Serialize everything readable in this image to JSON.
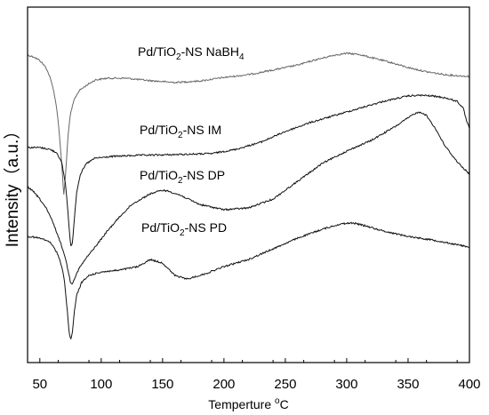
{
  "chart_data": {
    "type": "line",
    "xlabel_main": "Temperture ",
    "xlabel_sup": "o",
    "xlabel_unit": "C",
    "ylabel": "Intensity（a.u.）",
    "xlim": [
      40,
      400
    ],
    "xticks": [
      50,
      100,
      150,
      200,
      250,
      300,
      350,
      400
    ],
    "ylim": [
      0,
      100
    ],
    "grid": false,
    "series": [
      {
        "label_parts": [
          "Pd/TiO",
          "2",
          "-NS NaBH",
          "4"
        ],
        "color": "#666666",
        "x": [
          40,
          45,
          50,
          55,
          58,
          61,
          64,
          66,
          68,
          69.5,
          71,
          73,
          75,
          78,
          82,
          88,
          95,
          105,
          120,
          140,
          160,
          180,
          200,
          220,
          240,
          260,
          275,
          290,
          300,
          310,
          320,
          335,
          350,
          365,
          380,
          390,
          400
        ],
        "y": [
          86.5,
          86.0,
          85.0,
          83.0,
          80.5,
          77.0,
          71.0,
          64.0,
          55.0,
          47.0,
          53.0,
          64.0,
          70.0,
          74.0,
          76.5,
          78.0,
          79.5,
          80.0,
          80.0,
          79.3,
          78.8,
          79.2,
          80.2,
          81.0,
          82.3,
          83.7,
          85.2,
          86.5,
          87.0,
          86.7,
          85.8,
          84.5,
          83.0,
          81.8,
          81.0,
          80.7,
          80.5
        ]
      },
      {
        "label_parts": [
          "Pd/TiO",
          "2",
          "-NS IM"
        ],
        "color": "#111111",
        "x": [
          40,
          50,
          58,
          64,
          68,
          71,
          73,
          74.5,
          75.5,
          76.5,
          78,
          80,
          83,
          88,
          95,
          110,
          130,
          160,
          190,
          210,
          230,
          250,
          270,
          290,
          300,
          310,
          330,
          350,
          360,
          370,
          380,
          390,
          395,
          398,
          400
        ],
        "y": [
          60.5,
          60.5,
          60.0,
          59.0,
          56.0,
          50.0,
          42.0,
          35.0,
          32.5,
          33.5,
          40.0,
          48.0,
          53.0,
          56.0,
          57.5,
          58.0,
          58.3,
          58.5,
          58.8,
          60.0,
          62.0,
          65.0,
          67.5,
          69.5,
          70.5,
          71.5,
          73.5,
          75.0,
          75.2,
          75.0,
          74.5,
          73.5,
          71.5,
          67.5,
          66.0
        ]
      },
      {
        "label_parts": [
          "Pd/TiO",
          "2",
          "-NS DP"
        ],
        "color": "#111111",
        "x": [
          40,
          45,
          50,
          55,
          60,
          65,
          70,
          73,
          75,
          76,
          78,
          82,
          88,
          95,
          105,
          115,
          125,
          140,
          150,
          155,
          165,
          180,
          200,
          220,
          240,
          260,
          280,
          300,
          320,
          340,
          355,
          360,
          365,
          372,
          380,
          390,
          400
        ],
        "y": [
          49.5,
          48.0,
          46.0,
          43.5,
          40.0,
          35.5,
          30.5,
          26.0,
          22.5,
          22.0,
          23.5,
          26.5,
          29.5,
          32.5,
          37.0,
          41.0,
          44.5,
          47.5,
          48.5,
          48.2,
          47.0,
          44.5,
          43.0,
          43.5,
          46.0,
          51.0,
          56.0,
          59.5,
          62.5,
          66.5,
          70.0,
          70.5,
          69.5,
          66.0,
          61.0,
          56.5,
          53.0
        ]
      },
      {
        "label_parts": [
          "Pd/TiO",
          "2",
          "-NS PD"
        ],
        "color": "#111111",
        "x": [
          40,
          50,
          58,
          64,
          68,
          70,
          72,
          73.5,
          74.5,
          75.5,
          76.5,
          78,
          80,
          84,
          90,
          100,
          115,
          130,
          140,
          150,
          160,
          170,
          185,
          200,
          220,
          240,
          260,
          280,
          295,
          305,
          315,
          330,
          350,
          370,
          385,
          400
        ],
        "y": [
          35.5,
          35.0,
          34.0,
          31.0,
          27.0,
          23.0,
          16.0,
          10.0,
          7.0,
          6.5,
          8.5,
          14.0,
          19.0,
          22.5,
          24.5,
          25.5,
          26.0,
          27.0,
          29.0,
          28.0,
          24.5,
          23.5,
          25.0,
          27.0,
          29.0,
          32.0,
          35.0,
          37.5,
          39.0,
          39.3,
          38.5,
          37.0,
          35.5,
          34.5,
          33.5,
          32.5
        ]
      }
    ]
  }
}
